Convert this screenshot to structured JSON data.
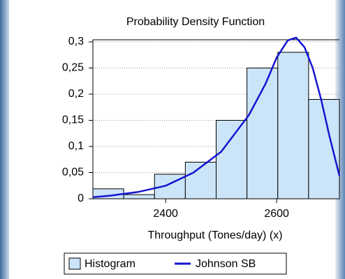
{
  "chart_data": {
    "type": "histogram",
    "title": "Probability Density Function",
    "x_label": "Throughput (Tones/day) (x)",
    "name": "Histogram",
    "color": "#cce4f8",
    "bins": [
      2269,
      2324.5,
      2380,
      2435.5,
      2491,
      2546.5,
      2602,
      2657.5,
      2713
    ],
    "values": [
      0.019,
      0.008,
      0.047,
      0.07,
      0.15,
      0.25,
      0.28,
      0.19
    ],
    "curve": {
      "name": "Johnson SB",
      "color": "#1414d2",
      "x": [
        2269,
        2300,
        2350,
        2400,
        2450,
        2500,
        2550,
        2580,
        2600,
        2620,
        2635,
        2650,
        2665,
        2680,
        2695,
        2713
      ],
      "values": [
        0.003,
        0.006,
        0.013,
        0.025,
        0.05,
        0.09,
        0.16,
        0.22,
        0.27,
        0.303,
        0.308,
        0.29,
        0.25,
        0.19,
        0.12,
        0.044
      ]
    },
    "xlim": [
      2269,
      2713
    ],
    "xticks": [
      2400,
      2600
    ],
    "ylim": [
      0,
      0.304
    ],
    "yticks": [
      0,
      {
        "value": 0.05,
        "label": "0,05"
      },
      {
        "value": 0.1,
        "label": "0,1"
      },
      {
        "value": 0.15,
        "label": "0,15"
      },
      {
        "value": 0.2,
        "label": "0,2"
      },
      {
        "value": 0.25,
        "label": "0,25"
      },
      {
        "value": 0.3,
        "label": "0,3"
      }
    ],
    "grid": true
  }
}
